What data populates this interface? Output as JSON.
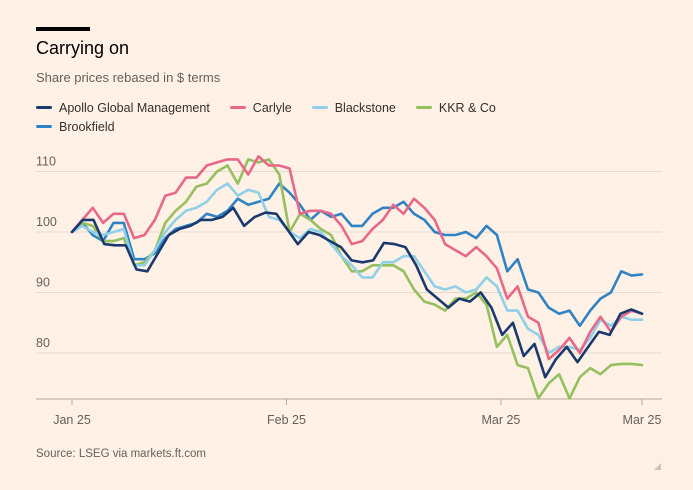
{
  "title": "Carrying on",
  "subtitle": "Share prices rebased in $ terms",
  "source": "Source: LSEG via markets.ft.com",
  "chart_data": {
    "type": "line",
    "title": "Carrying on",
    "subtitle": "Share prices rebased in $ terms",
    "xlabel": "",
    "ylabel": "",
    "x_ticks": [
      "Jan 25",
      "Feb 25",
      "Mar 25",
      "Mar 25"
    ],
    "x_tick_days": [
      0,
      38,
      76,
      101
    ],
    "y_ticks": [
      "110",
      "100",
      "90",
      "80"
    ],
    "y_tick_values": [
      110,
      100,
      90,
      80
    ],
    "xlim": [
      0,
      101
    ],
    "ylim": [
      72,
      112
    ],
    "grid": true,
    "legend_position": "top-left",
    "series": [
      {
        "name": "Apollo Global Management",
        "color": "#1a3a6e",
        "values": [
          100,
          102,
          102,
          98,
          97.8,
          97.8,
          93.8,
          93.5,
          96.5,
          99.5,
          100.5,
          101,
          102,
          102,
          102.5,
          104,
          101,
          102.5,
          103.2,
          103,
          100.5,
          98,
          100,
          99.5,
          98.5,
          97.5,
          95.3,
          95,
          95.3,
          98.2,
          98,
          97.5,
          94.5,
          90.5,
          89,
          87.5,
          89,
          88.5,
          90,
          87.5,
          83,
          85,
          79.5,
          81.5,
          76,
          79,
          81,
          78.5,
          81,
          83.5,
          83,
          86.5,
          87.2,
          86.5
        ]
      },
      {
        "name": "Carlyle",
        "color": "#e8688a",
        "values": [
          100,
          102,
          104,
          101.5,
          103,
          103,
          99,
          99.5,
          102,
          106,
          106.5,
          109,
          109,
          111,
          111.5,
          112,
          112,
          109.5,
          112.5,
          111,
          111,
          110.5,
          103,
          103.5,
          103.5,
          103,
          101,
          98,
          98.5,
          100.5,
          102,
          104.5,
          103,
          105.5,
          104,
          102,
          98,
          97,
          96,
          97.5,
          96,
          94,
          89,
          91,
          86,
          85,
          79,
          80.5,
          82.5,
          80,
          83.5,
          86,
          83.5,
          86,
          87,
          86.5
        ]
      },
      {
        "name": "Blackstone",
        "color": "#8fd0e8",
        "values": [
          100,
          101,
          100,
          99.5,
          100,
          100.5,
          94.5,
          94.5,
          97,
          100,
          102,
          103.5,
          104,
          105,
          107,
          108,
          106,
          107,
          106.5,
          102.5,
          102,
          100,
          99,
          100.5,
          100,
          98,
          96,
          94.5,
          92.5,
          92.5,
          95,
          95,
          96,
          96,
          93.5,
          91,
          90.5,
          91,
          90,
          90.5,
          92.5,
          91,
          87,
          87,
          84,
          83,
          80,
          81,
          81,
          80.5,
          82.5,
          85.5,
          84.5,
          86,
          85.5,
          85.5
        ]
      },
      {
        "name": "KKR & Co",
        "color": "#96bf5e",
        "values": [
          100,
          101.5,
          101,
          98.5,
          98.5,
          99,
          94.5,
          95,
          97,
          101.5,
          103.5,
          105,
          107.5,
          108,
          110,
          111,
          108,
          112,
          111.5,
          112,
          109.5,
          100,
          103,
          102,
          100.5,
          99.5,
          96,
          93.5,
          93.5,
          94.5,
          94.5,
          94.5,
          93.5,
          90.5,
          88.5,
          88,
          87,
          89,
          89,
          90,
          88,
          81,
          83,
          78,
          77.5,
          72.5,
          75,
          76.5,
          72.5,
          76,
          77.5,
          76.5,
          78,
          78.2,
          78.2,
          78
        ]
      },
      {
        "name": "Brookfield",
        "color": "#2f83c5",
        "values": [
          100,
          101.5,
          99.5,
          98.5,
          101.5,
          101.5,
          95.5,
          95.5,
          96.5,
          99,
          100.5,
          101,
          101.5,
          103,
          102.5,
          103.5,
          105.5,
          104.5,
          105,
          105.5,
          108,
          106.5,
          104.5,
          102,
          103.5,
          102.5,
          103,
          101,
          101,
          103,
          104,
          104,
          105,
          103,
          102,
          100,
          99.5,
          99.5,
          100,
          99,
          101,
          99.5,
          93.5,
          95.5,
          90.5,
          90,
          87.5,
          86.5,
          87,
          84.5,
          87,
          89,
          90,
          93.5,
          92.8,
          93
        ]
      }
    ]
  }
}
